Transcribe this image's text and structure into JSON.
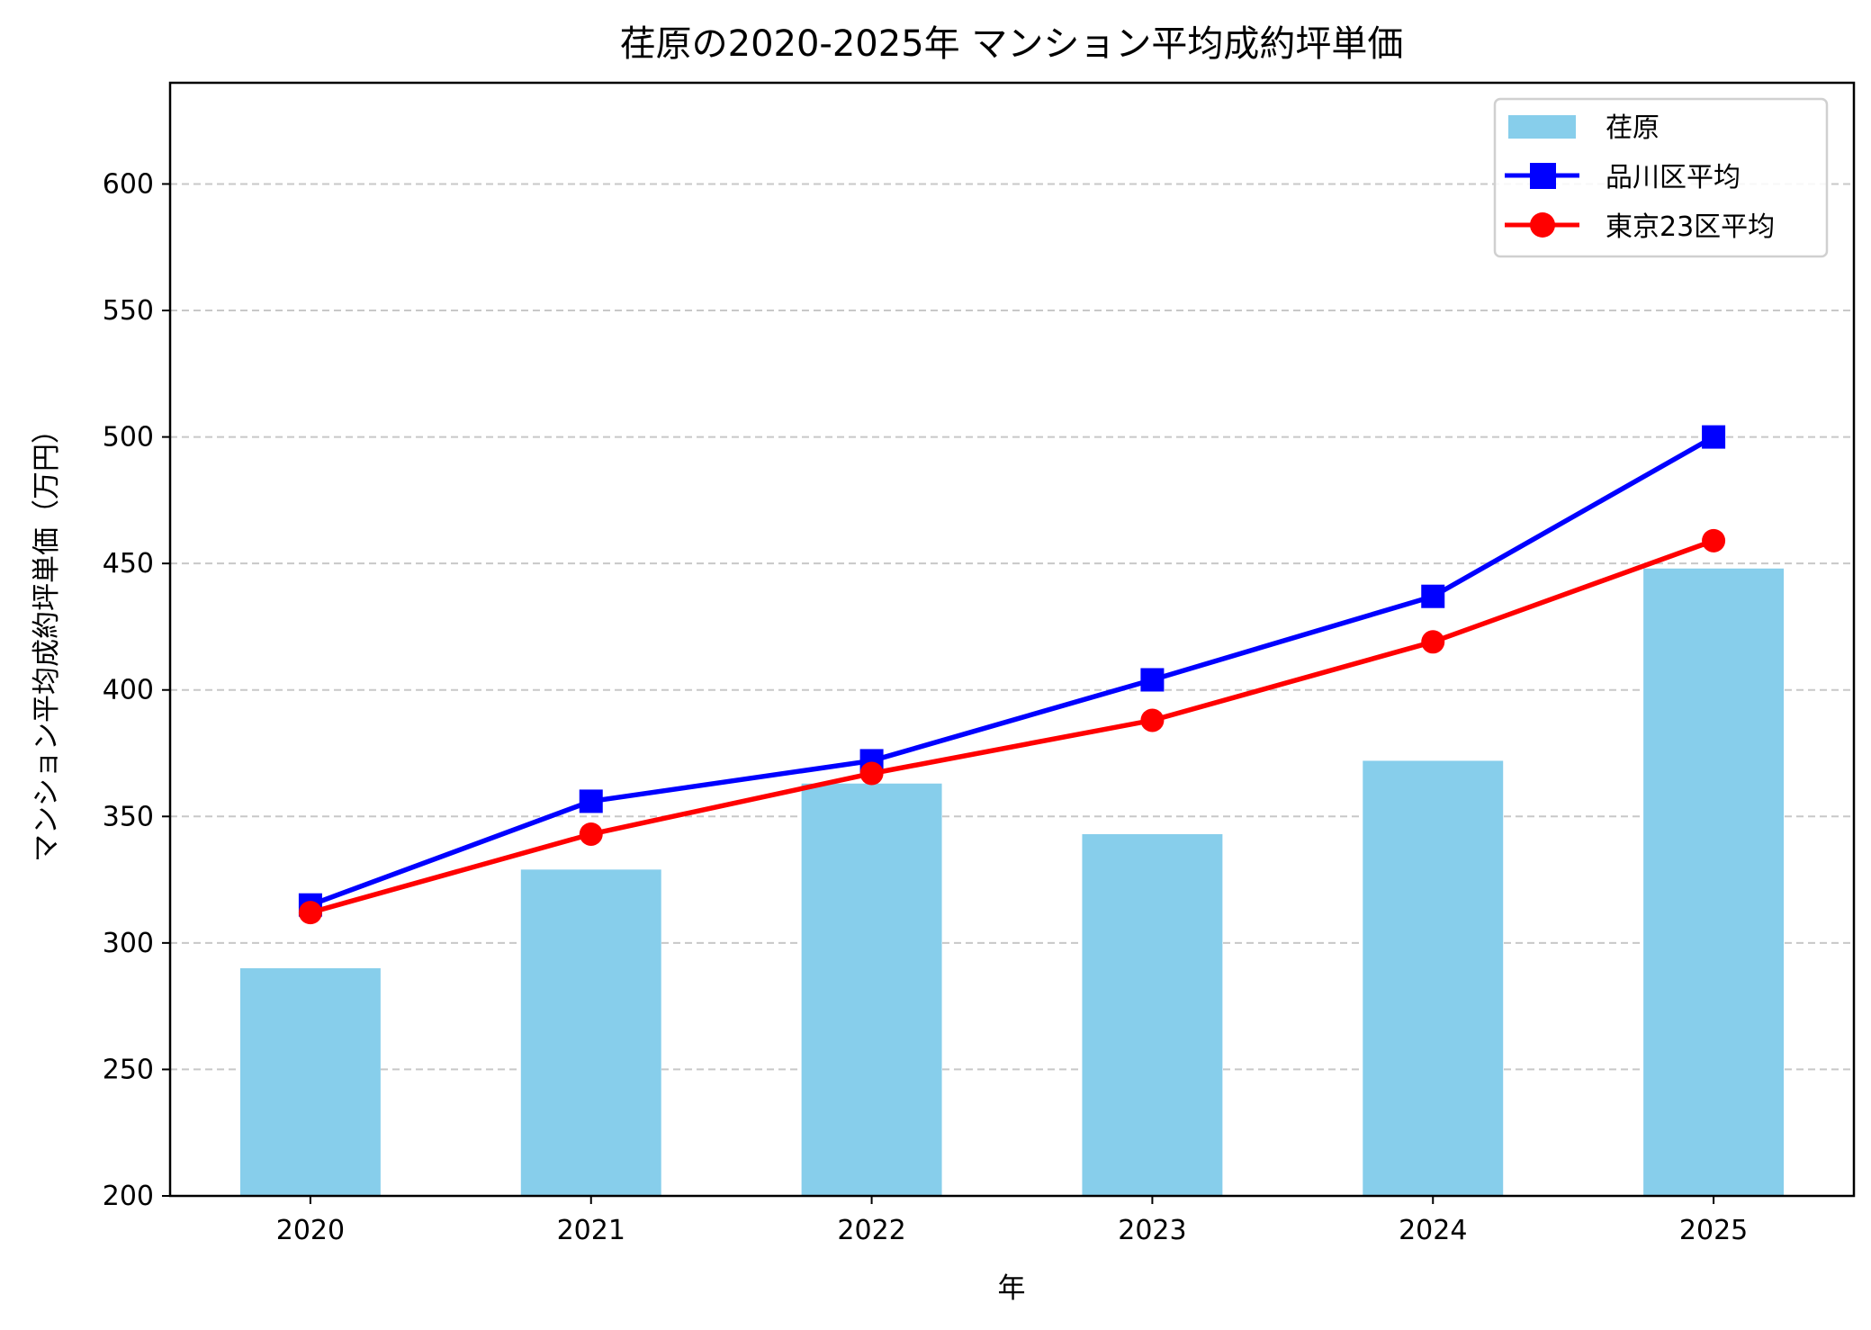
{
  "chart_data": {
    "type": "bar+line",
    "title": "荏原の2020-2025年 マンション平均成約坪単価",
    "xlabel": "年",
    "ylabel": "マンション平均成約坪単価（万円）",
    "categories": [
      "2020",
      "2021",
      "2022",
      "2023",
      "2024",
      "2025"
    ],
    "ylim": [
      200,
      640
    ],
    "yticks": [
      200,
      250,
      300,
      350,
      400,
      450,
      500,
      550,
      600
    ],
    "grid": "y-dashed",
    "legend_position": "top-right",
    "series": [
      {
        "name": "荏原",
        "kind": "bar",
        "color": "#87CEEB",
        "values": [
          290,
          329,
          363,
          343,
          372,
          448
        ]
      },
      {
        "name": "品川区平均",
        "kind": "line",
        "marker": "square",
        "color": "#0000FF",
        "values": [
          315,
          356,
          372,
          404,
          437,
          500
        ]
      },
      {
        "name": "東京23区平均",
        "kind": "line",
        "marker": "circle",
        "color": "#FF0000",
        "values": [
          312,
          343,
          367,
          388,
          419,
          459
        ]
      }
    ]
  }
}
